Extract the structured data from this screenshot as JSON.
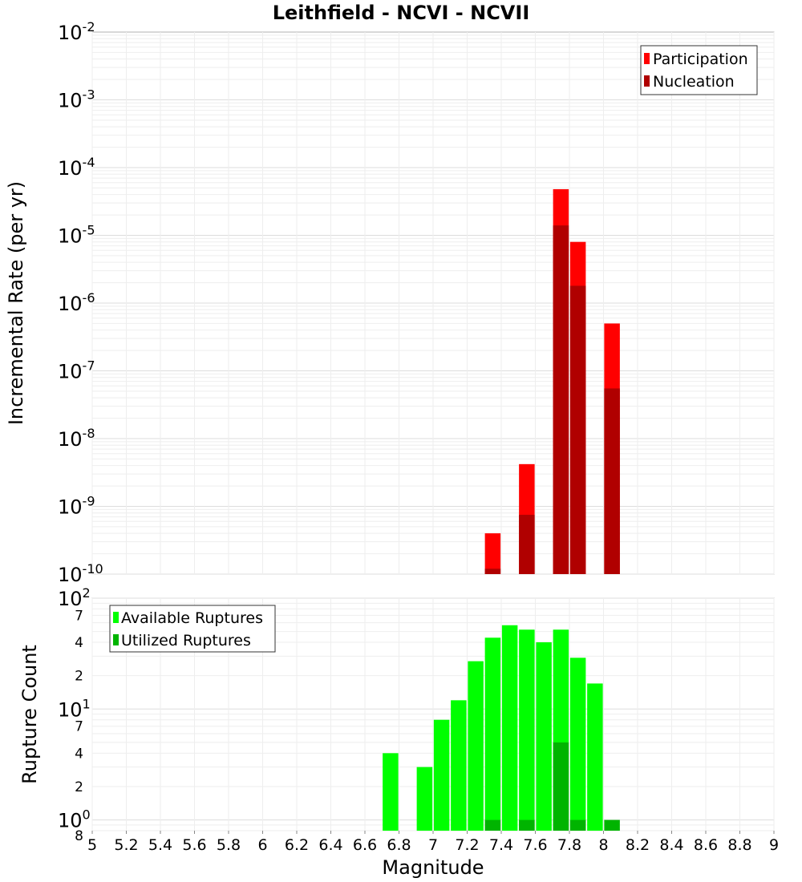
{
  "chart_data": [
    {
      "type": "bar",
      "title": "Leithfield - NCVI - NCVII",
      "xlabel": "Magnitude",
      "ylabel": "Incremental Rate (per yr)",
      "yscale": "log",
      "ylim": [
        1e-10,
        0.01
      ],
      "xlim": [
        5,
        9
      ],
      "legend": "top-right",
      "grid": true,
      "y_ticks": [
        {
          "base": "10",
          "exp": "-10"
        },
        {
          "base": "10",
          "exp": "-9"
        },
        {
          "base": "10",
          "exp": "-8"
        },
        {
          "base": "10",
          "exp": "-7"
        },
        {
          "base": "10",
          "exp": "-6"
        },
        {
          "base": "10",
          "exp": "-5"
        },
        {
          "base": "10",
          "exp": "-4"
        },
        {
          "base": "10",
          "exp": "-3"
        },
        {
          "base": "10",
          "exp": "-2"
        }
      ],
      "x": [
        7.35,
        7.55,
        7.75,
        7.85,
        8.05
      ],
      "series": [
        {
          "name": "Participation",
          "color": "#ff0000",
          "values": [
            4e-10,
            4.2e-09,
            4.8e-05,
            8e-06,
            5e-07
          ]
        },
        {
          "name": "Nucleation",
          "color": "#b00000",
          "values": [
            1.2e-10,
            7.5e-10,
            1.4e-05,
            1.8e-06,
            5.5e-08
          ]
        }
      ]
    },
    {
      "type": "bar",
      "xlabel": "Magnitude",
      "ylabel": "Rupture Count",
      "yscale": "log",
      "ylim": [
        0.8,
        100
      ],
      "xlim": [
        5,
        9
      ],
      "legend": "top-left",
      "grid": true,
      "y_ticks": [
        {
          "value": 1,
          "base": "10",
          "exp": "0"
        },
        {
          "value": 10,
          "base": "10",
          "exp": "1"
        },
        {
          "value": 100,
          "base": "10",
          "exp": "2"
        }
      ],
      "y_minor_labels": [
        {
          "value": 0.8,
          "label": "8"
        },
        {
          "value": 2,
          "label": "2"
        },
        {
          "value": 4,
          "label": "4"
        },
        {
          "value": 7,
          "label": "7"
        },
        {
          "value": 20,
          "label": "2"
        },
        {
          "value": 40,
          "label": "4"
        },
        {
          "value": 70,
          "label": "7"
        }
      ],
      "x": [
        6.75,
        6.95,
        7.05,
        7.15,
        7.25,
        7.35,
        7.45,
        7.55,
        7.65,
        7.75,
        7.85,
        7.95,
        8.05
      ],
      "series": [
        {
          "name": "Available Ruptures",
          "color": "#00ff00",
          "values": [
            4,
            3,
            8,
            12,
            27,
            44,
            57,
            52,
            40,
            52,
            29,
            17,
            0
          ]
        },
        {
          "name": "Utilized Ruptures",
          "color": "#00b400",
          "values": [
            0,
            0,
            0,
            0,
            0,
            1,
            0,
            1,
            0,
            5,
            1,
            0,
            1
          ]
        }
      ]
    }
  ],
  "x_ticks": [
    "5",
    "5.2",
    "5.4",
    "5.6",
    "5.8",
    "6",
    "6.2",
    "6.4",
    "6.6",
    "6.8",
    "7",
    "7.2",
    "7.4",
    "7.6",
    "7.8",
    "8",
    "8.2",
    "8.4",
    "8.6",
    "8.8",
    "9"
  ]
}
